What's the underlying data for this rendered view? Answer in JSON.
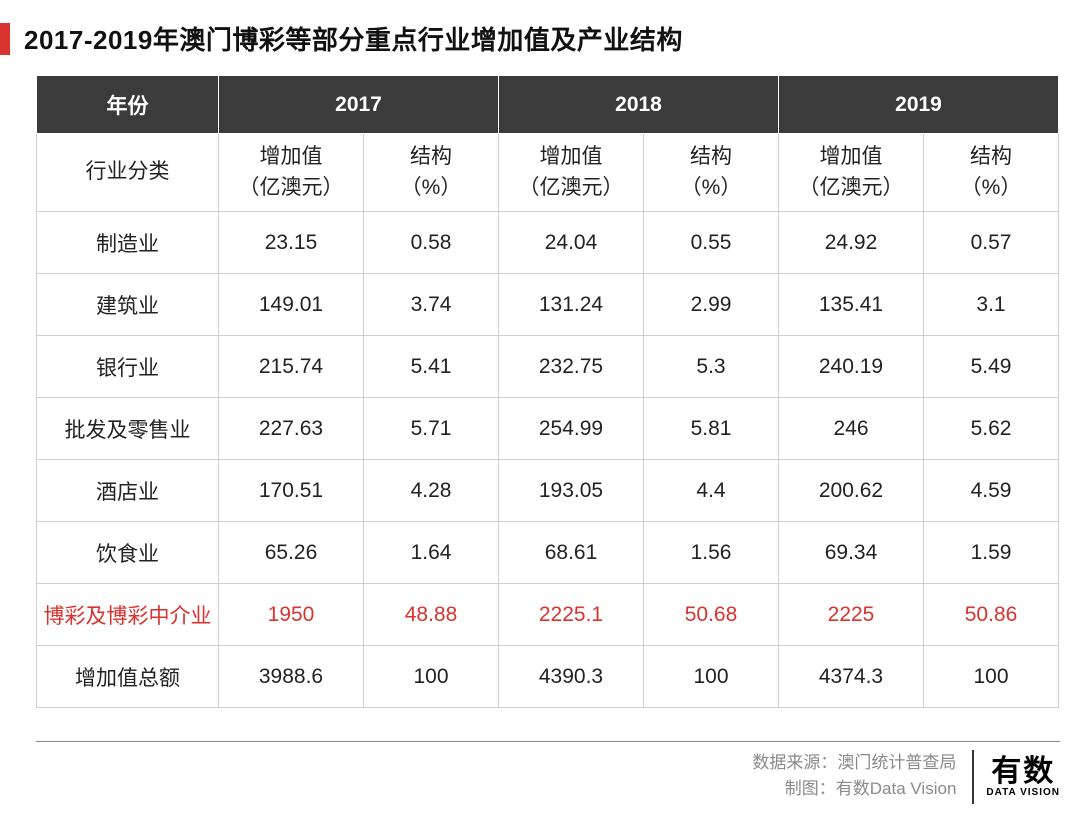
{
  "title": "2017-2019年澳门博彩等部分重点行业增加值及产业结构",
  "years": [
    "2017",
    "2018",
    "2019"
  ],
  "header": {
    "year_label": "年份",
    "industry_label": "行业分类",
    "value_label_line1": "增加值",
    "value_label_line2": "（亿澳元）",
    "pct_label_line1": "结构",
    "pct_label_line2": "（%）"
  },
  "rows": [
    {
      "label": "制造业",
      "v17": "23.15",
      "p17": "0.58",
      "v18": "24.04",
      "p18": "0.55",
      "v19": "24.92",
      "p19": "0.57",
      "highlight": false
    },
    {
      "label": "建筑业",
      "v17": "149.01",
      "p17": "3.74",
      "v18": "131.24",
      "p18": "2.99",
      "v19": "135.41",
      "p19": "3.1",
      "highlight": false
    },
    {
      "label": "银行业",
      "v17": "215.74",
      "p17": "5.41",
      "v18": "232.75",
      "p18": "5.3",
      "v19": "240.19",
      "p19": "5.49",
      "highlight": false
    },
    {
      "label": "批发及零售业",
      "v17": "227.63",
      "p17": "5.71",
      "v18": "254.99",
      "p18": "5.81",
      "v19": "246",
      "p19": "5.62",
      "highlight": false
    },
    {
      "label": "酒店业",
      "v17": "170.51",
      "p17": "4.28",
      "v18": "193.05",
      "p18": "4.4",
      "v19": "200.62",
      "p19": "4.59",
      "highlight": false
    },
    {
      "label": "饮食业",
      "v17": "65.26",
      "p17": "1.64",
      "v18": "68.61",
      "p18": "1.56",
      "v19": "69.34",
      "p19": "1.59",
      "highlight": false
    },
    {
      "label": "博彩及博彩中介业",
      "v17": "1950",
      "p17": "48.88",
      "v18": "2225.1",
      "p18": "50.68",
      "v19": "2225",
      "p19": "50.86",
      "highlight": true
    },
    {
      "label": "增加值总额",
      "v17": "3988.6",
      "p17": "100",
      "v18": "4390.3",
      "p18": "100",
      "v19": "4374.3",
      "p19": "100",
      "highlight": false
    }
  ],
  "footer": {
    "source_label": "数据来源：",
    "source_value": "澳门统计普查局",
    "chart_label": "制图：",
    "chart_value": "有数Data Vision"
  },
  "logo": {
    "cn": "有数",
    "en": "DATA VISION"
  },
  "colors": {
    "accent": "#d9332e",
    "header_bg": "#3b3b3b",
    "border": "#cfcfcf",
    "text": "#222222",
    "muted": "#8a8a8a"
  }
}
